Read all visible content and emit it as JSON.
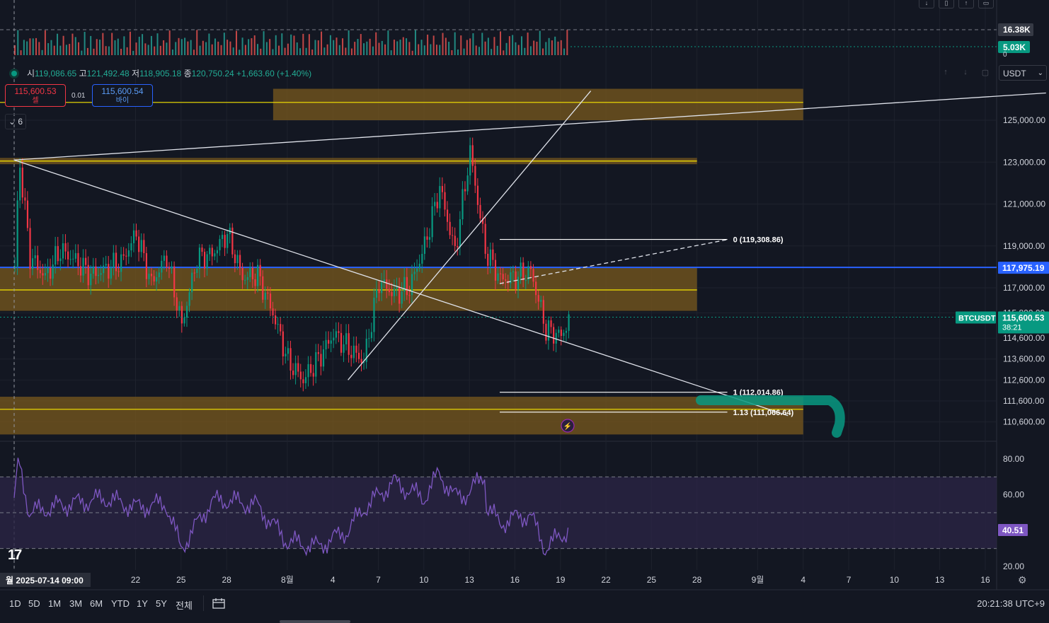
{
  "symbol": "BTCUSDT",
  "ohlc": {
    "open_label": "시",
    "open": "119,086.65",
    "high_label": "고",
    "high": "121,492.48",
    "low_label": "저",
    "low": "118,905.18",
    "close_label": "종",
    "close": "120,750.24",
    "change": "+1,663.60 (+1.40%)"
  },
  "trade": {
    "sell_price": "115,600.53",
    "sell_label": "셀",
    "spread": "0.01",
    "buy_price": "115,600.54",
    "buy_label": "바이"
  },
  "indicator_collapse": {
    "icon": "chevron-down-icon",
    "count": "6"
  },
  "currency": "USDT",
  "time_ranges": [
    "1D",
    "5D",
    "1M",
    "3M",
    "6M",
    "YTD",
    "1Y",
    "5Y",
    "전체"
  ],
  "clock": "20:21:38 UTC+9",
  "chart_data": {
    "type": "candlestick",
    "symbol": "BTCUSDT",
    "price_axis": {
      "ylim": [
        110000,
        126500
      ],
      "ticks": [
        125000,
        123000,
        121000,
        119000,
        117000,
        115800,
        114600,
        113600,
        112600,
        111600,
        110600
      ],
      "tick_labels": [
        "125,000.00",
        "123,000.00",
        "121,000.00",
        "119,000.00",
        "117,000.00",
        "115,800.00",
        "114,600.00",
        "113,600.00",
        "112,600.00",
        "111,600.00",
        "110,600.00"
      ]
    },
    "time_axis": {
      "tick_labels": [
        "월 2025-07-14  09:00",
        "22",
        "25",
        "28",
        "8월",
        "4",
        "7",
        "10",
        "13",
        "16",
        "19",
        "22",
        "25",
        "28",
        "9월",
        "4",
        "7",
        "10",
        "13",
        "16"
      ],
      "tick_dates": [
        "2025-07-14",
        "2025-07-22",
        "2025-07-25",
        "2025-07-28",
        "2025-08-01",
        "2025-08-04",
        "2025-08-07",
        "2025-08-10",
        "2025-08-13",
        "2025-08-16",
        "2025-08-19",
        "2025-08-22",
        "2025-08-25",
        "2025-08-28",
        "2025-09-01",
        "2025-09-04",
        "2025-09-07",
        "2025-09-10",
        "2025-09-13",
        "2025-09-16"
      ]
    },
    "price_path": {
      "dates": [
        "2025-07-14",
        "2025-07-14",
        "2025-07-15",
        "2025-07-16",
        "2025-07-17",
        "2025-07-18",
        "2025-07-19",
        "2025-07-21",
        "2025-07-22",
        "2025-07-23",
        "2025-07-24",
        "2025-07-25",
        "2025-07-26",
        "2025-07-27",
        "2025-07-28",
        "2025-07-29",
        "2025-07-30",
        "2025-07-31",
        "2025-08-01",
        "2025-08-02",
        "2025-08-03",
        "2025-08-04",
        "2025-08-05",
        "2025-08-06",
        "2025-08-07",
        "2025-08-08",
        "2025-08-09",
        "2025-08-10",
        "2025-08-11",
        "2025-08-12",
        "2025-08-13",
        "2025-08-14",
        "2025-08-15",
        "2025-08-16",
        "2025-08-17",
        "2025-08-18",
        "2025-08-19",
        "2025-08-19"
      ],
      "close": [
        118000,
        123100,
        118500,
        117500,
        118800,
        118300,
        117600,
        118200,
        119600,
        117200,
        118500,
        115200,
        118400,
        118600,
        119600,
        117500,
        117600,
        115800,
        113500,
        112600,
        113600,
        114800,
        114100,
        113500,
        117300,
        116700,
        117000,
        119000,
        121800,
        118700,
        123500,
        118800,
        117400,
        117500,
        117800,
        115000,
        114700,
        115600
      ]
    },
    "volume_axis": {
      "labels": [
        "16.38K",
        "5.03K",
        "0"
      ],
      "values": [
        16380,
        5030,
        0
      ]
    },
    "rsi": {
      "ylim": [
        20,
        85
      ],
      "tick_labels": [
        "80.00",
        "60.00",
        "20.00"
      ],
      "levels": [
        70,
        50,
        30
      ],
      "current": "40.51",
      "dates": [
        "2025-07-14",
        "2025-07-14",
        "2025-07-15",
        "2025-07-17",
        "2025-07-20",
        "2025-07-22",
        "2025-07-24",
        "2025-07-25",
        "2025-07-27",
        "2025-07-28",
        "2025-07-30",
        "2025-08-01",
        "2025-08-03",
        "2025-08-05",
        "2025-08-06",
        "2025-08-08",
        "2025-08-10",
        "2025-08-11",
        "2025-08-12",
        "2025-08-13",
        "2025-08-14",
        "2025-08-14",
        "2025-08-15",
        "2025-08-16",
        "2025-08-17",
        "2025-08-18",
        "2025-08-19",
        "2025-08-19"
      ],
      "values": [
        57,
        79,
        50,
        54,
        58,
        53,
        55,
        30,
        56,
        57,
        54,
        34,
        31,
        40,
        52,
        67,
        58,
        72,
        59,
        61,
        72,
        55,
        44,
        47,
        49,
        30,
        37,
        41
      ]
    },
    "horizontal_lines": [
      {
        "price": 125850,
        "color": "#f7e600"
      },
      {
        "price": 123050,
        "color": "#f7e600"
      },
      {
        "price": 116900,
        "color": "#f7e600"
      },
      {
        "price": 111200,
        "color": "#f7e600"
      },
      {
        "price": 117975.19,
        "color": "#2962ff"
      }
    ],
    "zones": [
      {
        "from": 125000,
        "to": 126500,
        "date_from": "2025-08-01",
        "date_to": "2025-09-04"
      },
      {
        "from": 122900,
        "to": 123200,
        "date_from": "2025-07-14",
        "date_to": "2025-08-28"
      },
      {
        "from": 115900,
        "to": 117950,
        "date_from": "2025-07-14",
        "date_to": "2025-08-28"
      },
      {
        "from": 110000,
        "to": 111800,
        "date_from": "2025-07-14",
        "date_to": "2025-09-04"
      }
    ],
    "fib_levels": [
      {
        "label": "0 (119,308.86)",
        "price": 119308.86
      },
      {
        "label": "1 (112,014.86)",
        "price": 112014.86
      },
      {
        "label": "1.13 (111,066.64)",
        "price": 111066.64
      }
    ],
    "price_labels": {
      "blue_line": "117,975.19",
      "current_price": "115,600.53",
      "countdown": "38:21",
      "symbol_tag": "BTCUSDT"
    },
    "colors": {
      "up": "#089981",
      "down": "#f23645",
      "zone": "#7a5a1e",
      "rsi": "#7e57c2",
      "rsi_band": "#2a2445"
    }
  }
}
